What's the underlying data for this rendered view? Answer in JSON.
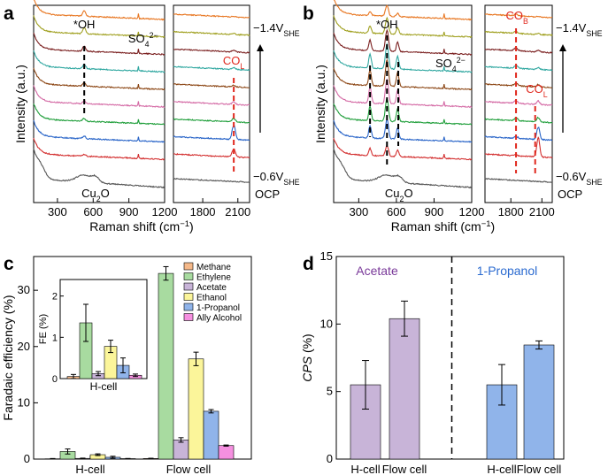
{
  "figure": {
    "panel_letters": [
      "a",
      "b",
      "c",
      "d"
    ],
    "shared": {
      "raman_xlabel_prefix": "Raman shift (cm",
      "raman_xlabel_sup": "−1",
      "raman_xlabel_suffix": ")",
      "raman_ylabel": "Intensity (a.u.)",
      "voltage_top_main": "−1.4V",
      "voltage_top_sub": "SHE",
      "voltage_bottom_main": "−0.6V",
      "voltage_bottom_sub": "SHE",
      "ocp": "OCP",
      "oh_label": "*OH",
      "so4_main": "SO",
      "so4_sub": "4",
      "so4_sup": "2−",
      "co_main": "CO",
      "co_l_sub": "L",
      "co_b_sub": "B",
      "cu2o_main": "Cu",
      "cu2o_sub": "2",
      "cu2o_suffix": "O",
      "left_ticks": [
        "300",
        "600",
        "900",
        "1200"
      ],
      "right_ticks": [
        "1800",
        "2100"
      ]
    },
    "colors": {
      "spectra": [
        "#e87722",
        "#a0a020",
        "#7a1f1f",
        "#2fa7a0",
        "#8b4513",
        "#d46aa5",
        "#1f9e3a",
        "#2864c8",
        "#d32f2f",
        "#555555"
      ],
      "annotation_red": "#e0281e",
      "bar_methane": "#f5b98a",
      "bar_ethylene": "#a8dba0",
      "bar_acetate": "#c8b4d8",
      "bar_ethanol": "#fbf59a",
      "bar_propanol": "#90b4ea",
      "bar_allyl": "#f590e0",
      "acetate_text": "#7a3a9a",
      "propanol_text": "#2a6ad0"
    }
  },
  "chart_data": [
    {
      "id": "a",
      "type": "line",
      "title": "",
      "xlabel": "Raman shift (cm−1)",
      "ylabel": "Intensity (a.u.)",
      "xlim_left": [
        100,
        1200
      ],
      "xlim_right": [
        1550,
        2200
      ],
      "series_labels_top_to_bottom": [
        "−1.4V SHE",
        "",
        "",
        "",
        "",
        "",
        "",
        "",
        "−0.6V SHE",
        "OCP"
      ],
      "annotations": [
        "*OH",
        "SO4 2−",
        "COL",
        "Cu2O"
      ]
    },
    {
      "id": "b",
      "type": "line",
      "title": "",
      "xlabel": "Raman shift (cm−1)",
      "ylabel": "Intensity (a.u.)",
      "xlim_left": [
        100,
        1200
      ],
      "xlim_right": [
        1550,
        2200
      ],
      "series_labels_top_to_bottom": [
        "−1.4V SHE",
        "",
        "",
        "",
        "",
        "",
        "",
        "",
        "−0.6V SHE",
        "OCP"
      ],
      "annotations": [
        "*OH",
        "SO4 2−",
        "COB",
        "COL",
        "Cu2O"
      ]
    },
    {
      "id": "c",
      "type": "bar",
      "title": "",
      "xlabel": "",
      "ylabel": "Faradaic efficiency (%)",
      "categories": [
        "H-cell",
        "Flow cell"
      ],
      "ylim": [
        0,
        36
      ],
      "yticks": [
        "0",
        "10",
        "20",
        "30"
      ],
      "series": [
        {
          "name": "Methane",
          "values": [
            0.05,
            0.1
          ],
          "errors": [
            0.05,
            0.05
          ]
        },
        {
          "name": "Ethylene",
          "values": [
            1.35,
            33.0
          ],
          "errors": [
            0.45,
            1.2
          ]
        },
        {
          "name": "Acetate",
          "values": [
            0.12,
            3.4
          ],
          "errors": [
            0.05,
            0.4
          ]
        },
        {
          "name": "Ethanol",
          "values": [
            0.78,
            17.8
          ],
          "errors": [
            0.15,
            1.2
          ]
        },
        {
          "name": "1-Propanol",
          "values": [
            0.32,
            8.5
          ],
          "errors": [
            0.18,
            0.3
          ]
        },
        {
          "name": "Ally Alcohol",
          "values": [
            0.08,
            2.4
          ],
          "errors": [
            0.03,
            0.1
          ]
        }
      ],
      "inset": {
        "ylabel": "FE (%)",
        "xlabel": "H-cell",
        "ylim": [
          0,
          2.4
        ],
        "yticks": [
          "0",
          "1",
          "2"
        ]
      }
    },
    {
      "id": "d",
      "type": "bar",
      "title": "",
      "xlabel": "",
      "ylabel": "CPS (%)",
      "ylim": [
        0,
        15
      ],
      "yticks": [
        "0",
        "5",
        "10",
        "15"
      ],
      "groups": [
        {
          "name": "Acetate",
          "categories": [
            "H-cell",
            "Flow cell"
          ],
          "values": [
            5.5,
            10.4
          ],
          "errors": [
            1.8,
            1.3
          ]
        },
        {
          "name": "1-Propanol",
          "categories": [
            "H-cell",
            "Flow cell"
          ],
          "values": [
            5.5,
            8.45
          ],
          "errors": [
            1.5,
            0.3
          ]
        }
      ]
    }
  ]
}
